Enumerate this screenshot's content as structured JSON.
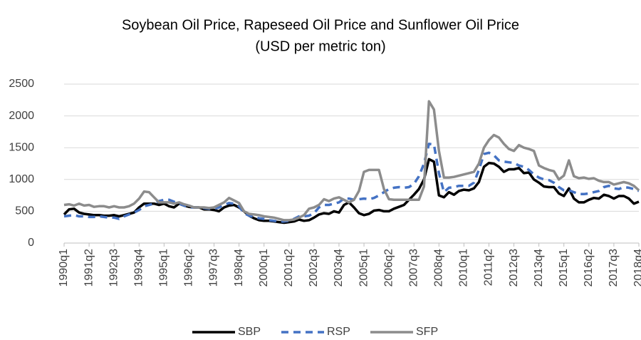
{
  "chart_data": {
    "type": "line",
    "title": "Soybean Oil Price, Rapeseed Oil Price and Sunflower Oil Price",
    "subtitle": "(USD per metric ton)",
    "categories": [
      "1990q1",
      null,
      null,
      null,
      null,
      "1991q2",
      null,
      null,
      null,
      null,
      "1992q3",
      null,
      null,
      null,
      null,
      "1993q4",
      null,
      null,
      null,
      null,
      "1995q1",
      null,
      null,
      null,
      null,
      "1996q2",
      null,
      null,
      null,
      null,
      "1997q3",
      null,
      null,
      null,
      null,
      "1998q4",
      null,
      null,
      null,
      null,
      "2000q1",
      null,
      null,
      null,
      null,
      "2001q2",
      null,
      null,
      null,
      null,
      "2002q3",
      null,
      null,
      null,
      null,
      "2003q4",
      null,
      null,
      null,
      null,
      "2005q1",
      null,
      null,
      null,
      null,
      "2006q2",
      null,
      null,
      null,
      null,
      "2007q3",
      null,
      null,
      null,
      null,
      "2008q4",
      null,
      null,
      null,
      null,
      "2010q1",
      null,
      null,
      null,
      null,
      "2011q2",
      null,
      null,
      null,
      null,
      "2012q3",
      null,
      null,
      null,
      null,
      "2013q4",
      null,
      null,
      null,
      null,
      "2015q1",
      null,
      null,
      null,
      null,
      "2016q2",
      null,
      null,
      null,
      null,
      "2017q3",
      null,
      null,
      null,
      null,
      "2018q4"
    ],
    "series": [
      {
        "name": "SBP",
        "color": "#000000",
        "dash": false,
        "values": [
          450,
          530,
          540,
          480,
          460,
          450,
          440,
          440,
          430,
          430,
          440,
          420,
          440,
          460,
          480,
          560,
          620,
          620,
          620,
          600,
          620,
          580,
          560,
          620,
          590,
          570,
          560,
          560,
          530,
          530,
          520,
          500,
          560,
          590,
          600,
          560,
          500,
          430,
          390,
          360,
          350,
          350,
          340,
          330,
          320,
          330,
          340,
          370,
          350,
          360,
          400,
          450,
          470,
          460,
          500,
          480,
          600,
          640,
          560,
          470,
          440,
          460,
          510,
          520,
          500,
          500,
          540,
          570,
          600,
          680,
          760,
          850,
          1000,
          1320,
          1280,
          750,
          720,
          800,
          760,
          820,
          840,
          830,
          860,
          960,
          1200,
          1260,
          1250,
          1200,
          1120,
          1160,
          1160,
          1180,
          1100,
          1110,
          1000,
          950,
          890,
          880,
          880,
          780,
          740,
          860,
          700,
          640,
          640,
          680,
          710,
          700,
          760,
          740,
          700,
          740,
          740,
          700,
          620,
          650
        ]
      },
      {
        "name": "RSP",
        "color": "#4472c4",
        "dash": true,
        "values": [
          420,
          430,
          440,
          420,
          420,
          410,
          410,
          420,
          410,
          400,
          400,
          380,
          420,
          450,
          480,
          520,
          580,
          600,
          620,
          660,
          680,
          680,
          650,
          620,
          590,
          560,
          560,
          560,
          550,
          540,
          540,
          560,
          600,
          630,
          620,
          580,
          470,
          430,
          410,
          390,
          380,
          360,
          350,
          340,
          340,
          350,
          380,
          420,
          420,
          430,
          470,
          560,
          600,
          600,
          620,
          640,
          700,
          700,
          680,
          690,
          700,
          690,
          710,
          750,
          800,
          850,
          870,
          880,
          870,
          880,
          930,
          1050,
          1250,
          1560,
          1550,
          1100,
          800,
          870,
          880,
          900,
          900,
          900,
          950,
          1150,
          1400,
          1420,
          1380,
          1300,
          1280,
          1270,
          1260,
          1220,
          1200,
          1150,
          1080,
          1030,
          1000,
          990,
          950,
          880,
          830,
          830,
          800,
          770,
          770,
          780,
          800,
          820,
          880,
          900,
          860,
          850,
          880,
          870,
          850,
          820
        ]
      },
      {
        "name": "SFP",
        "color": "#8c8c8c",
        "dash": false,
        "values": [
          600,
          610,
          590,
          620,
          590,
          600,
          570,
          580,
          580,
          560,
          580,
          560,
          560,
          580,
          620,
          700,
          810,
          800,
          720,
          640,
          640,
          640,
          620,
          640,
          610,
          590,
          560,
          560,
          560,
          550,
          560,
          600,
          640,
          710,
          670,
          630,
          500,
          460,
          450,
          440,
          420,
          410,
          400,
          380,
          360,
          360,
          370,
          400,
          440,
          540,
          560,
          600,
          690,
          660,
          700,
          720,
          680,
          640,
          680,
          820,
          1120,
          1150,
          1150,
          1150,
          850,
          690,
          680,
          680,
          680,
          680,
          680,
          680,
          890,
          2230,
          2100,
          1450,
          1030,
          1030,
          1040,
          1060,
          1080,
          1100,
          1120,
          1250,
          1500,
          1620,
          1700,
          1660,
          1560,
          1480,
          1450,
          1540,
          1500,
          1480,
          1450,
          1220,
          1180,
          1150,
          1130,
          1000,
          1060,
          1300,
          1050,
          1020,
          1030,
          1010,
          1020,
          980,
          960,
          960,
          920,
          940,
          960,
          940,
          900,
          830
        ]
      }
    ],
    "ylim": [
      0,
      2500
    ],
    "yticks": [
      0,
      500,
      1000,
      1500,
      2000,
      2500
    ],
    "grid": true,
    "legend": "bottom"
  }
}
